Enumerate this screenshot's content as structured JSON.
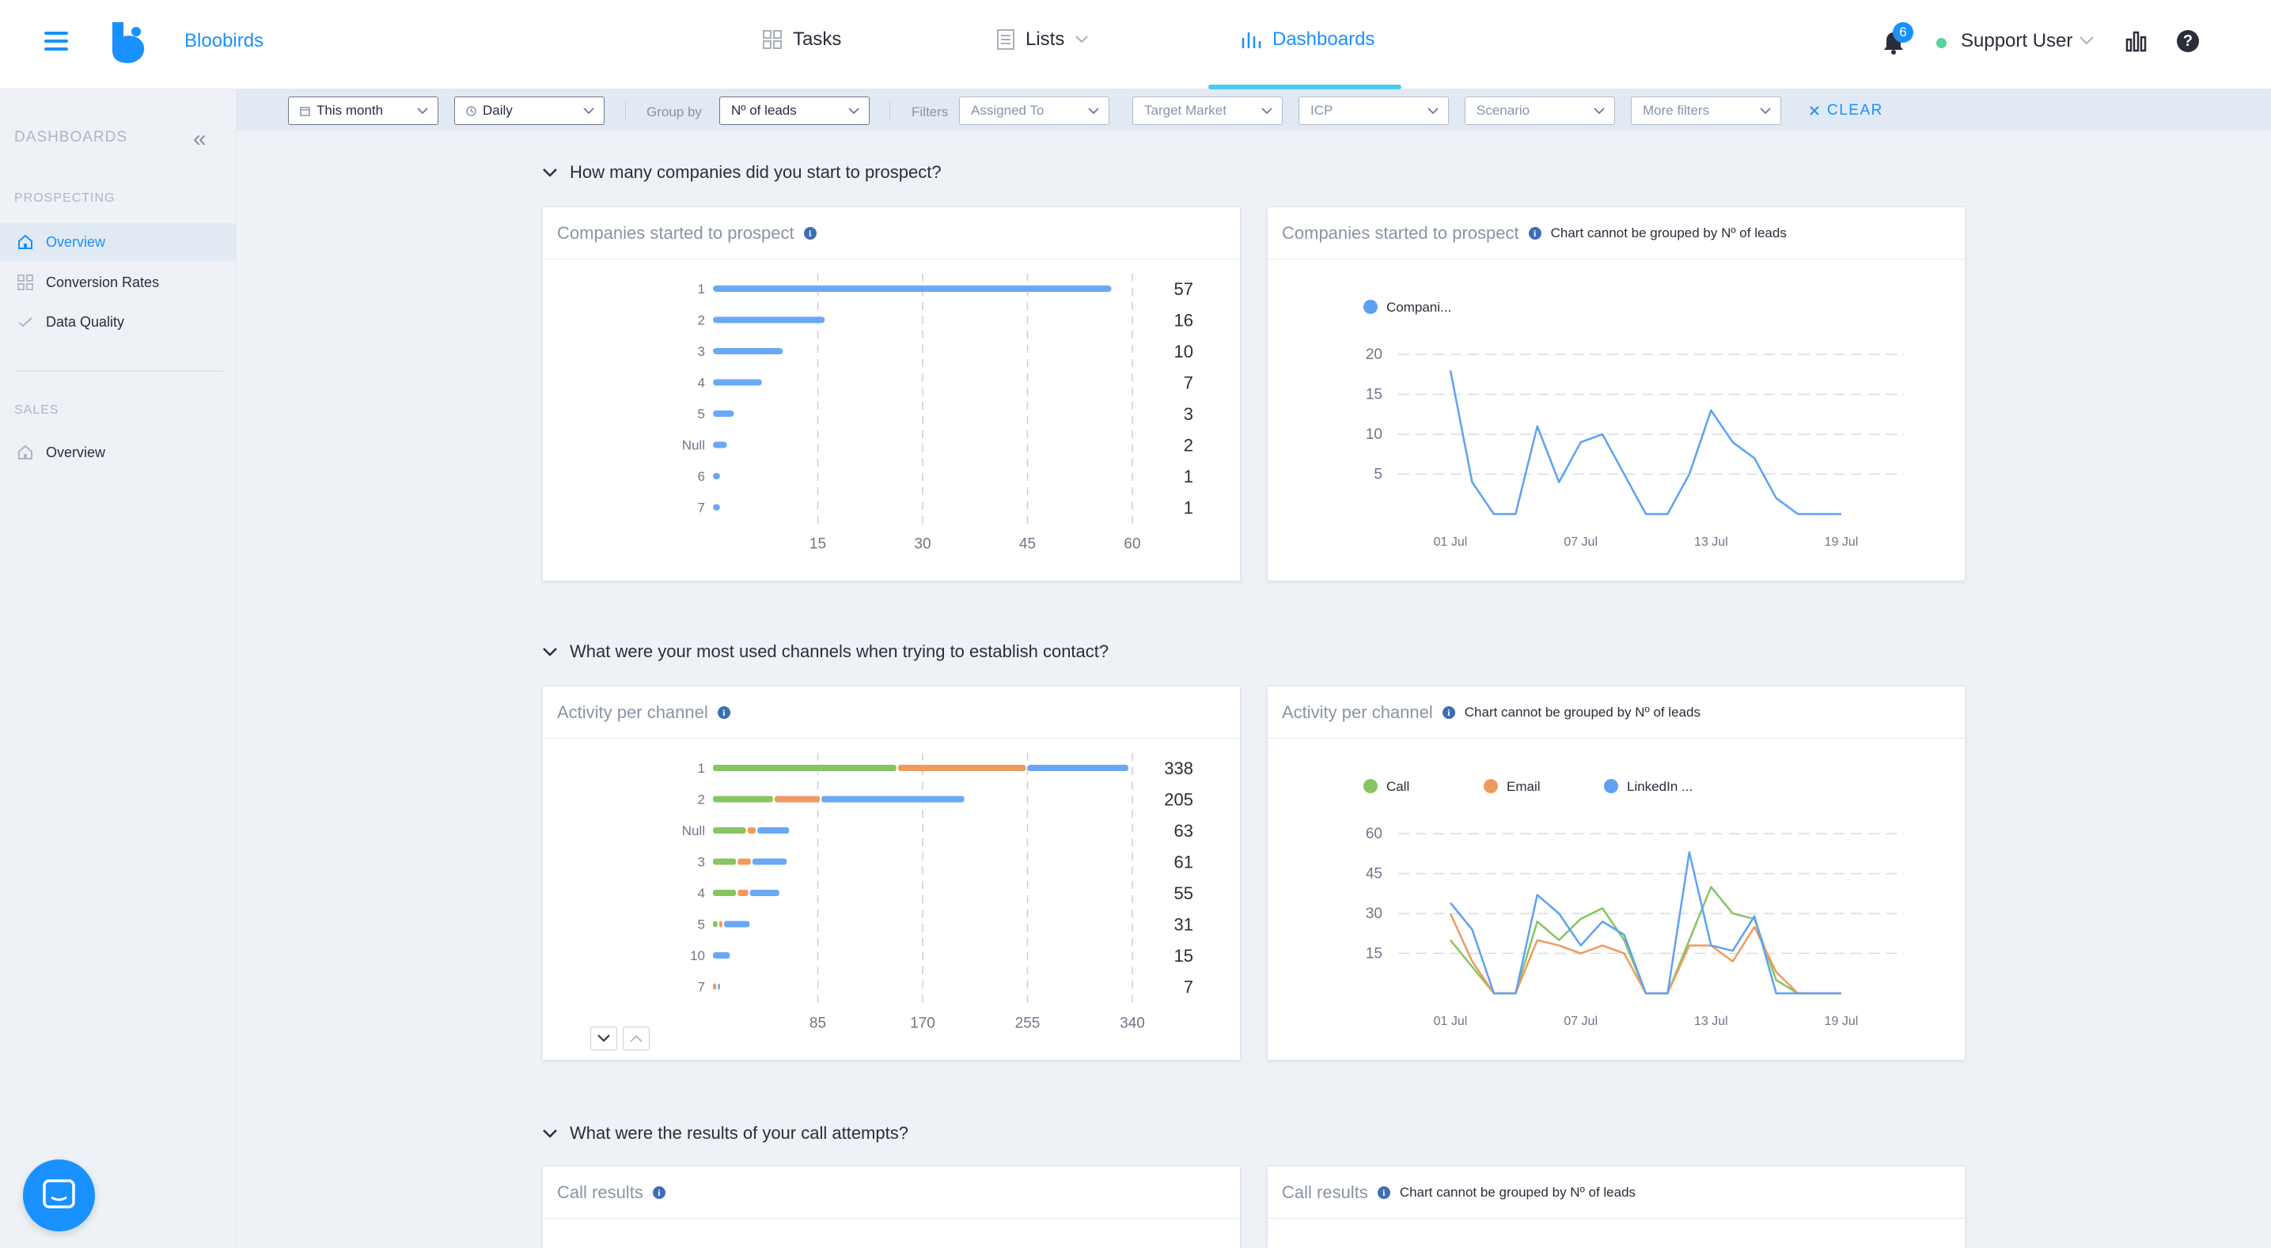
{
  "app": {
    "brand": "Bloobirds"
  },
  "nav": {
    "tasks": "Tasks",
    "lists": "Lists",
    "dashboards": "Dashboards"
  },
  "header": {
    "notifications_count": "6",
    "user": "Support User"
  },
  "sidebar": {
    "title": "DASHBOARDS",
    "sections": [
      {
        "label": "PROSPECTING",
        "items": [
          "Overview",
          "Conversion Rates",
          "Data Quality"
        ]
      },
      {
        "label": "SALES",
        "items": [
          "Overview"
        ]
      }
    ]
  },
  "filters": {
    "date_range": "This month",
    "granularity": "Daily",
    "group_by_label": "Group by",
    "group_by": "Nº of leads",
    "filters_label": "Filters",
    "assigned_to": "Assigned To",
    "target_market": "Target Market",
    "icp": "ICP",
    "scenario": "Scenario",
    "more_filters": "More filters",
    "clear": "CLEAR"
  },
  "sections": {
    "q1": "How many companies did you start to prospect?",
    "q2": "What were your most used channels when trying to establish contact?",
    "q3": "What were the results of your call attempts?"
  },
  "cards": {
    "companies_bar_title": "Companies started to prospect",
    "companies_line_title": "Companies started to prospect",
    "activity_bar_title": "Activity per channel",
    "activity_line_title": "Activity per channel",
    "call_results_title": "Call results",
    "call_results_line_title": "Call results",
    "not_grouped_note": "Chart cannot be grouped by Nº of leads"
  },
  "chart_data": [
    {
      "type": "bar",
      "orientation": "horizontal",
      "title": "Companies started to prospect",
      "categories": [
        "1",
        "2",
        "3",
        "4",
        "5",
        "Null",
        "6",
        "7"
      ],
      "values": [
        57,
        16,
        10,
        7,
        3,
        2,
        1,
        1
      ],
      "xticks": [
        "15",
        "30",
        "45",
        "60"
      ],
      "xlim": [
        0,
        60
      ],
      "color": "#6aa8f5"
    },
    {
      "type": "line",
      "title": "Companies started to prospect",
      "legend": [
        "Compani..."
      ],
      "x_labels": [
        "01 Jul",
        "07 Jul",
        "13 Jul",
        "19 Jul"
      ],
      "yticks": [
        "5",
        "10",
        "15",
        "20"
      ],
      "ylim": [
        0,
        22
      ],
      "series": [
        {
          "name": "Compani...",
          "color": "#5ea1f3",
          "values": [
            18,
            4,
            0,
            0,
            11,
            4,
            9,
            10,
            5,
            0,
            0,
            5,
            13,
            9,
            7,
            2,
            0,
            0,
            0
          ]
        }
      ]
    },
    {
      "type": "bar",
      "orientation": "horizontal",
      "stacked": true,
      "title": "Activity per channel",
      "categories": [
        "1",
        "2",
        "Null",
        "3",
        "4",
        "5",
        "10",
        "7"
      ],
      "totals": [
        338,
        205,
        63,
        61,
        55,
        31,
        15,
        7
      ],
      "series": [
        {
          "name": "Call",
          "color": "#86c561",
          "values": [
            150,
            50,
            28,
            20,
            20,
            5,
            0,
            0
          ]
        },
        {
          "name": "Email",
          "color": "#f09a5f",
          "values": [
            105,
            38,
            8,
            12,
            10,
            4,
            0,
            4
          ]
        },
        {
          "name": "LinkedIn ...",
          "color": "#6aa8f5",
          "values": [
            83,
            117,
            27,
            29,
            25,
            22,
            15,
            3
          ]
        }
      ],
      "xticks": [
        "85",
        "170",
        "255",
        "340"
      ],
      "xlim": [
        0,
        340
      ]
    },
    {
      "type": "line",
      "title": "Activity per channel",
      "legend": [
        "Call",
        "Email",
        "LinkedIn ..."
      ],
      "x_labels": [
        "01 Jul",
        "07 Jul",
        "13 Jul",
        "19 Jul"
      ],
      "yticks": [
        "15",
        "30",
        "45",
        "60"
      ],
      "ylim": [
        0,
        66
      ],
      "series": [
        {
          "name": "Call",
          "color": "#86c561",
          "values": [
            20,
            10,
            0,
            0,
            27,
            20,
            28,
            32,
            20,
            0,
            0,
            20,
            40,
            30,
            28,
            5,
            0,
            0,
            0
          ]
        },
        {
          "name": "Email",
          "color": "#f09a5f",
          "values": [
            30,
            12,
            0,
            0,
            20,
            18,
            15,
            18,
            15,
            0,
            0,
            18,
            18,
            12,
            25,
            8,
            0,
            0,
            0
          ]
        },
        {
          "name": "LinkedIn ...",
          "color": "#5ea1f3",
          "values": [
            34,
            24,
            0,
            0,
            37,
            30,
            18,
            27,
            22,
            0,
            0,
            53,
            18,
            16,
            29,
            0,
            0,
            0,
            0
          ]
        }
      ]
    }
  ]
}
